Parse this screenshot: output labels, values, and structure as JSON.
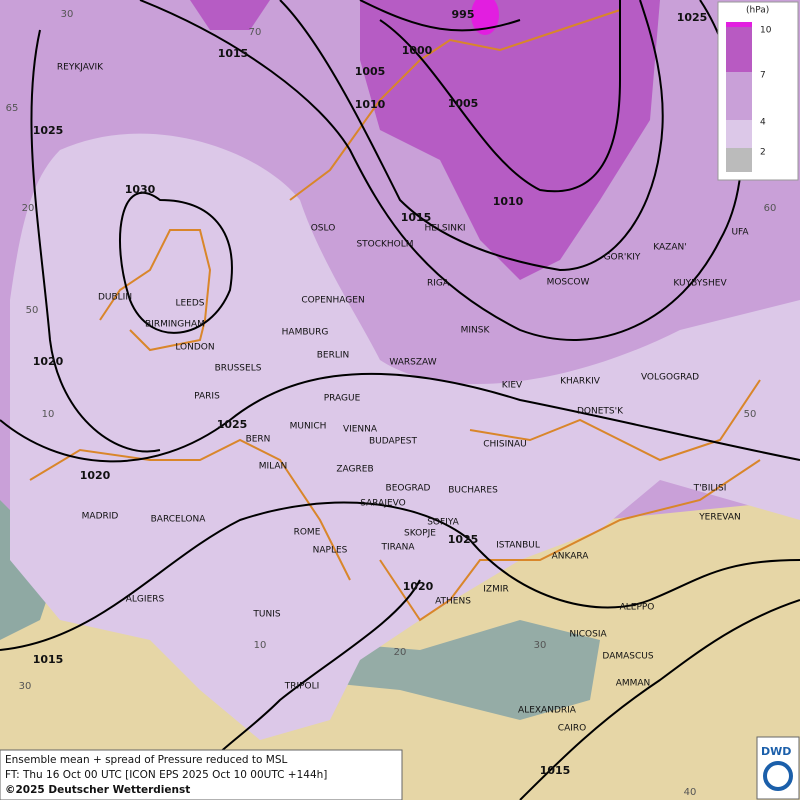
{
  "cities": [
    "REYKJAVIK",
    "OSLO",
    "STOCKHOLM",
    "HELSINKI",
    "DUBLIN",
    "LEEDS",
    "BIRMINGHAM",
    "LONDON",
    "COPENHAGEN",
    "RIGA",
    "MOSCOW",
    "GOR'KIY",
    "KAZAN'",
    "UFA",
    "KUYBYSHEV",
    "HAMBURG",
    "BERLIN",
    "MINSK",
    "WARSZAW",
    "BRUSSELS",
    "PARIS",
    "PRAGUE",
    "KIEV",
    "KHARKIV",
    "VOLGOGRAD",
    "MUNICH",
    "VIENNA",
    "BUDAPEST",
    "DONETS'K",
    "BERN",
    "CHISINAU",
    "MILAN",
    "ZAGREB",
    "BEOGRAD",
    "BUCHARES",
    "T'BILISI",
    "SARAJEVO",
    "MADRID",
    "BARCELONA",
    "YEREVAN",
    "SOFIYA",
    "ROME",
    "SKOPJE",
    "TIRANA",
    "ISTANBUL",
    "NAPLES",
    "ANKARA",
    "ATHENS",
    "IZMIR",
    "ALGIERS",
    "TUNIS",
    "ALEPPO",
    "NICOSIA",
    "DAMASCUS",
    "TRIPOLI",
    "AMMAN",
    "ALEXANDRIA",
    "CAIRO"
  ],
  "isobars": [
    995,
    1000,
    1005,
    1005,
    1010,
    1010,
    1015,
    1015,
    1025,
    1025,
    1030,
    1020,
    1025,
    1020,
    1025,
    1020,
    1015,
    1015
  ],
  "graticule": [
    30,
    70,
    65,
    20,
    60,
    50,
    10,
    50,
    30,
    10,
    20,
    30,
    40
  ],
  "legend": {
    "unit": "(hPa)",
    "levels": [
      10,
      7,
      4,
      2
    ]
  },
  "footer": {
    "line1": "Ensemble mean + spread of Pressure reduced to MSL",
    "line2": "FT: Thu 16 Oct 00 UTC [ICON EPS 2025 Oct 10 00UTC +144h]",
    "line3": "©2025 Deutscher Wetterdienst"
  },
  "logo": "DWD"
}
